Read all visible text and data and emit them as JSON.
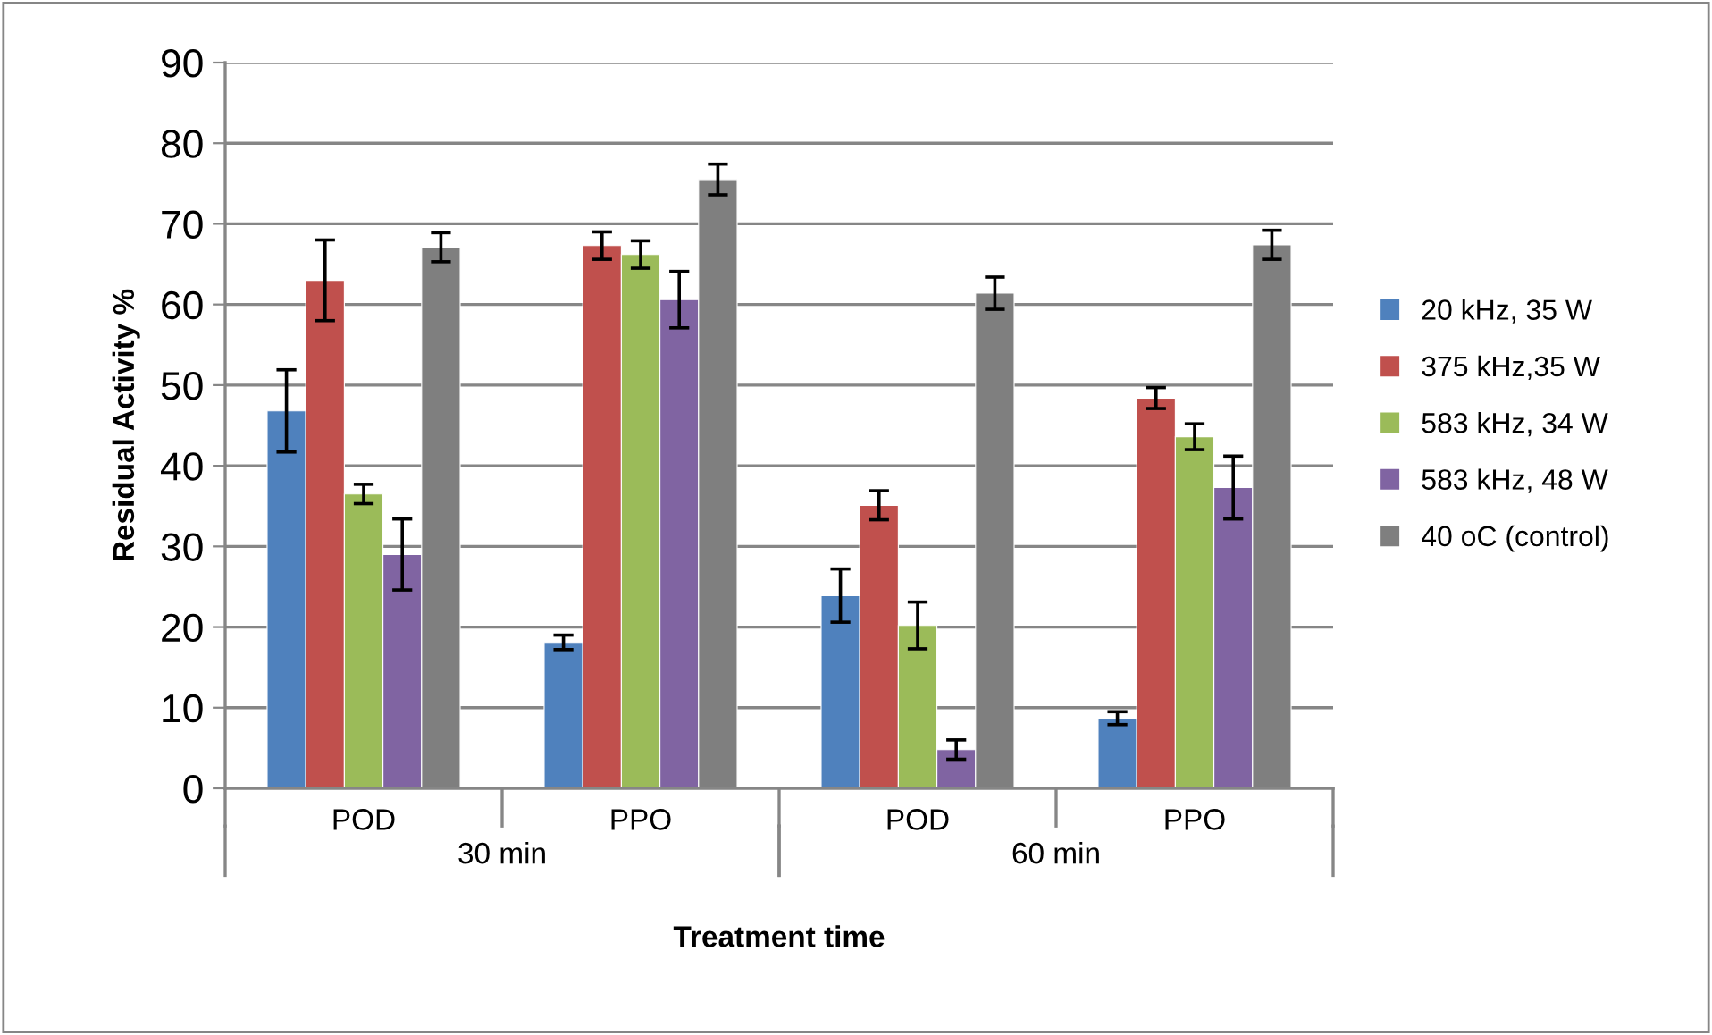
{
  "chart_data": {
    "type": "bar",
    "xlabel": "Treatment time",
    "ylabel": "Residual Activity %",
    "categories": [
      "POD",
      "PPO",
      "POD",
      "PPO"
    ],
    "annotations": [
      "30 min",
      "60 min"
    ],
    "series": [
      {
        "name": "20 kHz, 35 W",
        "color": "#4f81bd",
        "values": [
          46.8,
          18.1,
          23.9,
          8.7
        ],
        "errors": [
          5.1,
          0.9,
          3.3,
          0.8
        ]
      },
      {
        "name": "375 kHz,35 W",
        "color": "#c0504d",
        "values": [
          63.0,
          67.3,
          35.1,
          48.4
        ],
        "errors": [
          5.0,
          1.7,
          1.8,
          1.3
        ]
      },
      {
        "name": "583 kHz, 34 W",
        "color": "#9bbb59",
        "values": [
          36.5,
          66.2,
          20.2,
          43.6
        ],
        "errors": [
          1.2,
          1.7,
          2.9,
          1.6
        ]
      },
      {
        "name": "583 kHz, 48 W",
        "color": "#8064a2",
        "values": [
          29.0,
          60.6,
          4.8,
          37.3
        ],
        "errors": [
          4.4,
          3.5,
          1.2,
          3.9
        ]
      },
      {
        "name": "40 oC (control)",
        "color": "#7f7f7f",
        "values": [
          67.1,
          75.5,
          61.4,
          67.4
        ],
        "errors": [
          1.8,
          1.9,
          2.0,
          1.8
        ]
      }
    ],
    "ylim": [
      0,
      90
    ],
    "yticks": [
      0,
      10,
      20,
      30,
      40,
      50,
      60,
      70,
      80,
      90
    ],
    "grid": "y",
    "legend": "right"
  }
}
